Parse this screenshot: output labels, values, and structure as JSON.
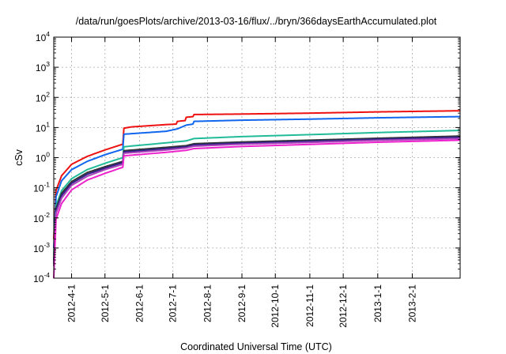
{
  "chart_data": {
    "type": "line",
    "title": "/data/run/goesPlots/archive/2013-03-16/flux/../bryn/366daysEarthAccumulated.plot",
    "xlabel": "Coordinated Universal Time (UTC)",
    "ylabel": "cSv",
    "y_scale": "log",
    "ylim": [
      0.0001,
      10000
    ],
    "xlim": [
      "2012-03-16",
      "2013-03-16"
    ],
    "grid": true,
    "legend": "none",
    "x_ticks": [
      "2012-4-1",
      "2012-5-1",
      "2012-6-1",
      "2012-7-1",
      "2012-8-1",
      "2012-9-1",
      "2012-10-1",
      "2012-11-1",
      "2012-12-1",
      "2013-1-1",
      "2013-2-1"
    ],
    "y_ticks": [
      {
        "value": 0.0001,
        "base": "10",
        "exp": "-4"
      },
      {
        "value": 0.001,
        "base": "10",
        "exp": "-3"
      },
      {
        "value": 0.01,
        "base": "10",
        "exp": "-2"
      },
      {
        "value": 0.1,
        "base": "10",
        "exp": "-1"
      },
      {
        "value": 1,
        "base": "10",
        "exp": "0"
      },
      {
        "value": 10,
        "base": "10",
        "exp": "1"
      },
      {
        "value": 100,
        "base": "10",
        "exp": "2"
      },
      {
        "value": 1000,
        "base": "10",
        "exp": "3"
      },
      {
        "value": 10000,
        "base": "10",
        "exp": "4"
      }
    ],
    "series": [
      {
        "color": "#ee1111",
        "points": [
          [
            "2012-03-16",
            0.002
          ],
          [
            "2012-03-18",
            0.08
          ],
          [
            "2012-03-23",
            0.25
          ],
          [
            "2012-04-01",
            0.6
          ],
          [
            "2012-04-15",
            1.1
          ],
          [
            "2012-05-01",
            1.8
          ],
          [
            "2012-05-17",
            2.8
          ],
          [
            "2012-05-18",
            9.5
          ],
          [
            "2012-05-25",
            10.5
          ],
          [
            "2012-06-25",
            12.5
          ],
          [
            "2012-07-04",
            13
          ],
          [
            "2012-07-05",
            16
          ],
          [
            "2012-07-12",
            17
          ],
          [
            "2012-07-13",
            22
          ],
          [
            "2012-07-19",
            23
          ],
          [
            "2012-07-20",
            27
          ],
          [
            "2012-09-01",
            28
          ],
          [
            "2012-11-01",
            30
          ],
          [
            "2013-01-01",
            33
          ],
          [
            "2013-03-16",
            36
          ]
        ]
      },
      {
        "color": "#1166ee",
        "points": [
          [
            "2012-03-16",
            0.001
          ],
          [
            "2012-03-18",
            0.05
          ],
          [
            "2012-03-23",
            0.17
          ],
          [
            "2012-04-01",
            0.4
          ],
          [
            "2012-04-15",
            0.75
          ],
          [
            "2012-05-01",
            1.25
          ],
          [
            "2012-05-17",
            1.9
          ],
          [
            "2012-05-18",
            6
          ],
          [
            "2012-06-25",
            7.5
          ],
          [
            "2012-07-05",
            9
          ],
          [
            "2012-07-13",
            12
          ],
          [
            "2012-07-19",
            13
          ],
          [
            "2012-07-20",
            16
          ],
          [
            "2012-09-01",
            17.5
          ],
          [
            "2012-11-01",
            19
          ],
          [
            "2013-01-01",
            21
          ],
          [
            "2013-03-16",
            23
          ]
        ]
      },
      {
        "color": "#22bb99",
        "points": [
          [
            "2012-03-16",
            0.0006
          ],
          [
            "2012-03-18",
            0.025
          ],
          [
            "2012-03-23",
            0.08
          ],
          [
            "2012-04-01",
            0.2
          ],
          [
            "2012-04-15",
            0.4
          ],
          [
            "2012-05-01",
            0.65
          ],
          [
            "2012-05-17",
            1.0
          ],
          [
            "2012-05-18",
            2.3
          ],
          [
            "2012-06-25",
            3.1
          ],
          [
            "2012-07-13",
            3.6
          ],
          [
            "2012-07-20",
            4.3
          ],
          [
            "2012-09-01",
            5
          ],
          [
            "2012-11-01",
            5.8
          ],
          [
            "2013-01-01",
            6.8
          ],
          [
            "2013-03-16",
            8
          ]
        ]
      },
      {
        "color": "#333333",
        "points": [
          [
            "2012-03-16",
            0.0004
          ],
          [
            "2012-03-18",
            0.02
          ],
          [
            "2012-03-23",
            0.065
          ],
          [
            "2012-04-01",
            0.16
          ],
          [
            "2012-04-15",
            0.32
          ],
          [
            "2012-05-01",
            0.5
          ],
          [
            "2012-05-17",
            0.75
          ],
          [
            "2012-05-18",
            1.7
          ],
          [
            "2012-06-25",
            2.2
          ],
          [
            "2012-07-13",
            2.5
          ],
          [
            "2012-07-20",
            2.9
          ],
          [
            "2012-09-01",
            3.3
          ],
          [
            "2012-11-01",
            3.8
          ],
          [
            "2013-01-01",
            4.4
          ],
          [
            "2013-03-16",
            5.2
          ]
        ]
      },
      {
        "color": "#332288",
        "points": [
          [
            "2012-03-16",
            0.0003
          ],
          [
            "2012-03-18",
            0.017
          ],
          [
            "2012-03-23",
            0.055
          ],
          [
            "2012-04-01",
            0.14
          ],
          [
            "2012-04-15",
            0.28
          ],
          [
            "2012-05-01",
            0.45
          ],
          [
            "2012-05-17",
            0.68
          ],
          [
            "2012-05-18",
            1.55
          ],
          [
            "2012-06-25",
            2.0
          ],
          [
            "2012-07-13",
            2.3
          ],
          [
            "2012-07-20",
            2.65
          ],
          [
            "2012-09-01",
            3.05
          ],
          [
            "2012-11-01",
            3.5
          ],
          [
            "2013-01-01",
            4.1
          ],
          [
            "2013-03-16",
            4.8
          ]
        ]
      },
      {
        "color": "#aa44bb",
        "points": [
          [
            "2012-03-16",
            0.00025
          ],
          [
            "2012-03-18",
            0.014
          ],
          [
            "2012-03-23",
            0.045
          ],
          [
            "2012-04-01",
            0.12
          ],
          [
            "2012-04-15",
            0.24
          ],
          [
            "2012-05-01",
            0.4
          ],
          [
            "2012-05-17",
            0.6
          ],
          [
            "2012-05-18",
            1.4
          ],
          [
            "2012-06-25",
            1.8
          ],
          [
            "2012-07-13",
            2.1
          ],
          [
            "2012-07-20",
            2.4
          ],
          [
            "2012-09-01",
            2.8
          ],
          [
            "2012-11-01",
            3.2
          ],
          [
            "2013-01-01",
            3.75
          ],
          [
            "2013-03-16",
            4.3
          ]
        ]
      },
      {
        "color": "#ee22cc",
        "points": [
          [
            "2012-03-16",
            0.0001
          ],
          [
            "2012-03-18",
            0.009
          ],
          [
            "2012-03-23",
            0.03
          ],
          [
            "2012-04-01",
            0.085
          ],
          [
            "2012-04-15",
            0.18
          ],
          [
            "2012-05-01",
            0.3
          ],
          [
            "2012-05-17",
            0.48
          ],
          [
            "2012-05-18",
            1.15
          ],
          [
            "2012-06-25",
            1.5
          ],
          [
            "2012-07-13",
            1.75
          ],
          [
            "2012-07-20",
            2.0
          ],
          [
            "2012-09-01",
            2.35
          ],
          [
            "2012-11-01",
            2.75
          ],
          [
            "2013-01-01",
            3.25
          ],
          [
            "2013-03-16",
            3.8
          ]
        ]
      }
    ]
  }
}
